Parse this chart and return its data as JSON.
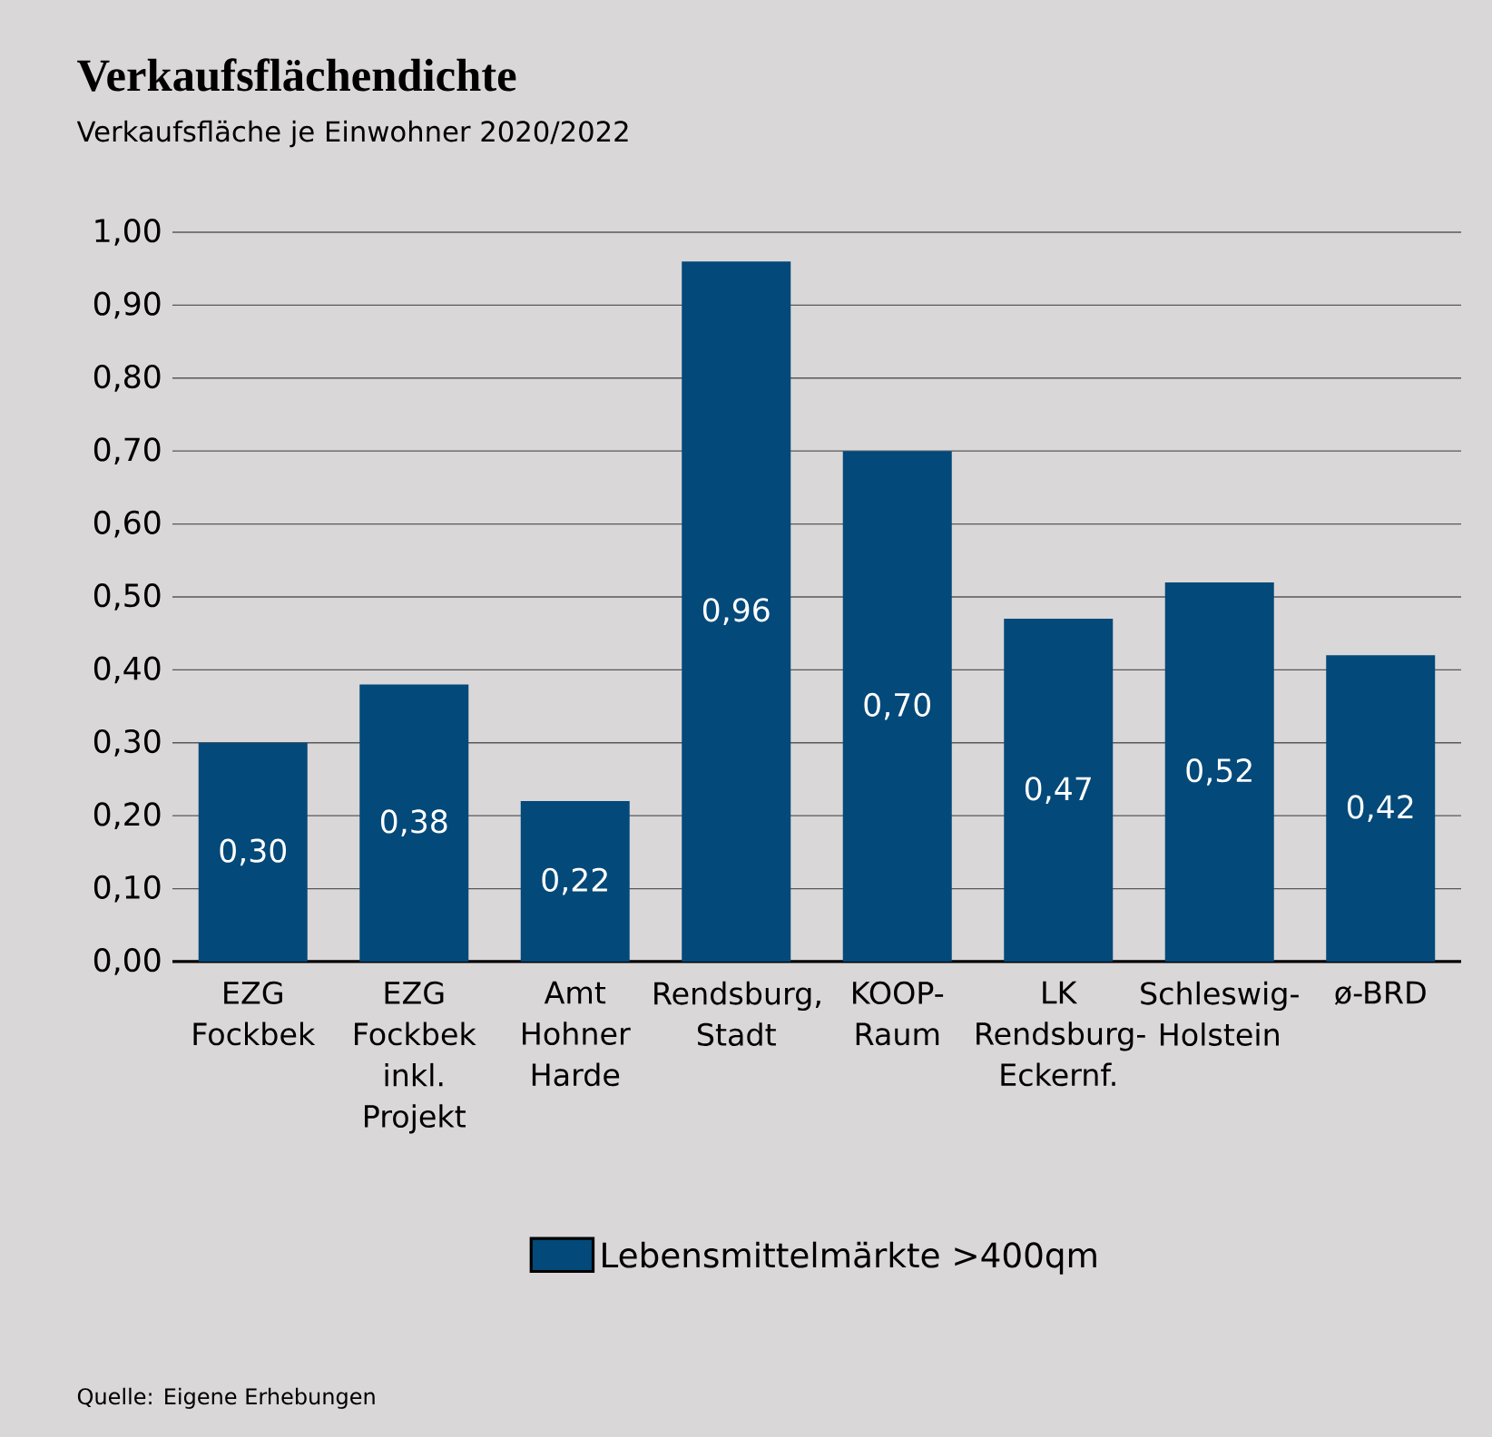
{
  "chart_data": {
    "type": "bar",
    "title": "Verkaufsflächendichte",
    "subtitle": "Verkaufsfläche je Einwohner 2020/2022",
    "categories": [
      "EZG Fockbek",
      "EZG Fockbek inkl. Projekt",
      "Amt Hohner Harde",
      "Rendsburg, Stadt",
      "KOOP-Raum",
      "LK Rendsburg-Eckernf.",
      "Schleswig-Holstein",
      "ø-BRD"
    ],
    "series": [
      {
        "name": "Lebensmittelmärkte >400qm",
        "color": "#03497a",
        "values": [
          0.3,
          0.38,
          0.22,
          0.96,
          0.7,
          0.47,
          0.52,
          0.42
        ],
        "value_labels": [
          "0,30",
          "0,38",
          "0,22",
          "0,96",
          "0,70",
          "0,47",
          "0,52",
          "0,42"
        ]
      }
    ],
    "ylim": [
      0,
      1
    ],
    "yticks": [
      {
        "value": 0,
        "label": "0,00"
      },
      {
        "value": 0.1,
        "label": "0,10"
      },
      {
        "value": 0.2,
        "label": "0,20"
      },
      {
        "value": 0.3,
        "label": "0,30"
      },
      {
        "value": 0.4,
        "label": "0,40"
      },
      {
        "value": 0.5,
        "label": "0,50"
      },
      {
        "value": 0.6,
        "label": "0,60"
      },
      {
        "value": 0.7,
        "label": "0,70"
      },
      {
        "value": 0.8,
        "label": "0,80"
      },
      {
        "value": 0.9,
        "label": "0,90"
      },
      {
        "value": 1,
        "label": "1,00"
      }
    ],
    "grid": "y",
    "legend": "bottom",
    "annotations": [
      "Quelle: Eigene Erhebungen"
    ]
  }
}
